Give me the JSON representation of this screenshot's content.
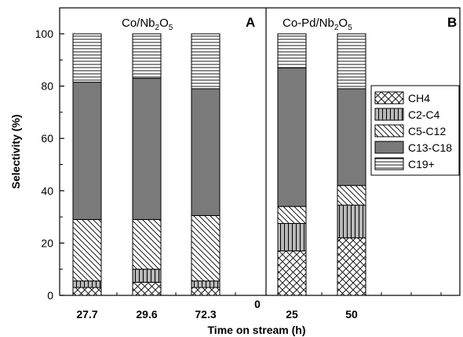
{
  "chart_data": {
    "type": "bar",
    "stacked": true,
    "xlabel": "Time on stream (h)",
    "ylabel": "Selectivity (%)",
    "ylim": [
      0,
      110
    ],
    "yticks": [
      0,
      20,
      40,
      60,
      80,
      100
    ],
    "series_names": [
      "CH4",
      "C2-C4",
      "C5-C12",
      "C13-C18",
      "C19+"
    ],
    "legend_position": "right, panel B",
    "panels": [
      {
        "label": "A",
        "title": "Co/Nb2O5",
        "title_main": "Co/Nb",
        "title_sub1": "2",
        "title_mid": "O",
        "title_sub2": "5",
        "categories": [
          "27.7",
          "29.6",
          "72.3"
        ],
        "series": [
          {
            "name": "CH4",
            "values": [
              3,
              5,
              3
            ]
          },
          {
            "name": "C2-C4",
            "values": [
              2.5,
              5,
              2.5
            ]
          },
          {
            "name": "C5-C12",
            "values": [
              23.5,
              19,
              25
            ]
          },
          {
            "name": "C13-C18",
            "values": [
              52.5,
              54,
              48.5
            ]
          },
          {
            "name": "C19+",
            "values": [
              18.5,
              17,
              21
            ]
          }
        ]
      },
      {
        "label": "B",
        "title": "Co-Pd/Nb2O5",
        "title_main": "Co-Pd/Nb",
        "title_sub1": "2",
        "title_mid": "O",
        "title_sub2": "5",
        "categories": [
          "25",
          "50"
        ],
        "series": [
          {
            "name": "CH4",
            "values": [
              17,
              22
            ]
          },
          {
            "name": "C2-C4",
            "values": [
              10.5,
              12.5
            ]
          },
          {
            "name": "C5-C12",
            "values": [
              6.5,
              7.5
            ]
          },
          {
            "name": "C13-C18",
            "values": [
              53,
              37
            ]
          },
          {
            "name": "C19+",
            "values": [
              13,
              21
            ]
          }
        ]
      }
    ],
    "extra_tick_label": "0"
  }
}
